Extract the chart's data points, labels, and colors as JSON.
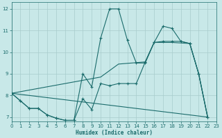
{
  "xlabel": "Humidex (Indice chaleur)",
  "bg_color": "#c8e8e8",
  "grid_color": "#a8cccc",
  "line_color": "#1a6b6b",
  "xlim": [
    0,
    23
  ],
  "ylim": [
    6.8,
    12.3
  ],
  "yticks": [
    7,
    8,
    9,
    10,
    11,
    12
  ],
  "xticks": [
    0,
    1,
    2,
    3,
    4,
    5,
    6,
    7,
    8,
    9,
    10,
    11,
    12,
    13,
    14,
    15,
    16,
    17,
    18,
    19,
    20,
    21,
    22,
    23
  ],
  "line1_x": [
    0,
    1,
    2,
    3,
    4,
    5,
    6,
    7,
    8,
    9,
    10,
    11,
    12,
    13,
    14,
    15,
    16,
    17,
    18,
    19,
    20,
    21,
    22
  ],
  "line1_y": [
    8.1,
    7.75,
    7.4,
    7.4,
    7.1,
    6.95,
    6.85,
    6.85,
    7.85,
    7.35,
    8.55,
    8.45,
    8.55,
    8.55,
    8.55,
    9.55,
    10.45,
    10.5,
    10.5,
    10.5,
    10.4,
    9.0,
    7.0
  ],
  "line2_x": [
    0,
    1,
    2,
    3,
    4,
    5,
    6,
    7,
    8,
    9,
    10,
    11,
    12,
    13,
    14,
    15,
    16,
    17,
    18,
    19,
    20,
    21,
    22
  ],
  "line2_y": [
    8.1,
    7.75,
    7.4,
    7.4,
    7.1,
    6.95,
    6.85,
    6.85,
    9.0,
    8.4,
    10.65,
    12.0,
    12.0,
    10.55,
    9.5,
    9.5,
    10.45,
    11.2,
    11.1,
    10.5,
    10.4,
    9.0,
    7.0
  ],
  "line3_x": [
    0,
    22
  ],
  "line3_y": [
    8.1,
    7.0
  ],
  "line4_x": [
    0,
    10,
    11,
    12,
    15,
    16,
    17,
    18,
    20,
    21,
    22
  ],
  "line4_y": [
    8.1,
    8.85,
    9.15,
    9.45,
    9.55,
    10.45,
    10.45,
    10.45,
    10.4,
    9.0,
    7.0
  ]
}
